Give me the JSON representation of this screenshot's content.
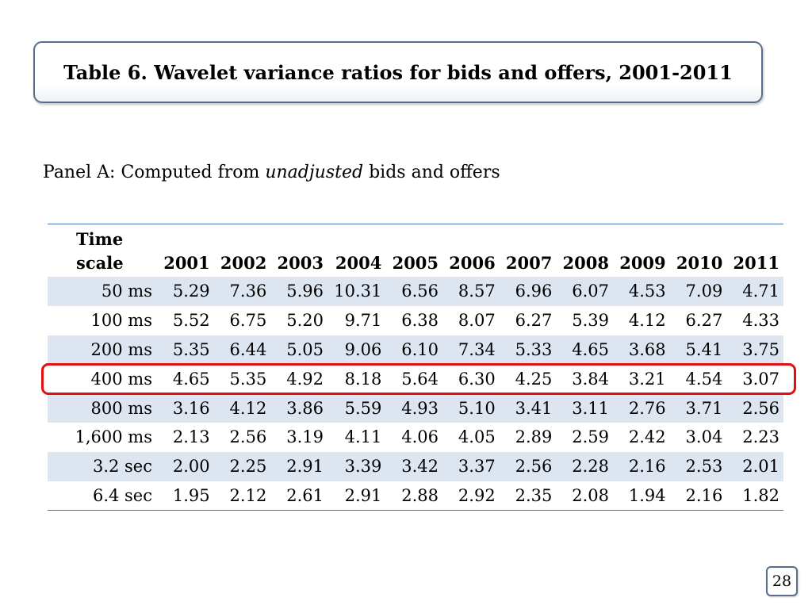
{
  "title": "Table 6. Wavelet variance ratios for bids and offers, 2001-2011",
  "panel": {
    "prefix": "Panel A: Computed from ",
    "emphasis": "unadjusted",
    "suffix": " bids and offers"
  },
  "table": {
    "scale_header_line1": "Time",
    "scale_header_line2": "scale",
    "years": [
      "2001",
      "2002",
      "2003",
      "2004",
      "2005",
      "2006",
      "2007",
      "2008",
      "2009",
      "2010",
      "2011"
    ],
    "rows": [
      {
        "scale": "50 ms",
        "values": [
          "5.29",
          "7.36",
          "5.96",
          "10.31",
          "6.56",
          "8.57",
          "6.96",
          "6.07",
          "4.53",
          "7.09",
          "4.71"
        ]
      },
      {
        "scale": "100 ms",
        "values": [
          "5.52",
          "6.75",
          "5.20",
          "9.71",
          "6.38",
          "8.07",
          "6.27",
          "5.39",
          "4.12",
          "6.27",
          "4.33"
        ]
      },
      {
        "scale": "200 ms",
        "values": [
          "5.35",
          "6.44",
          "5.05",
          "9.06",
          "6.10",
          "7.34",
          "5.33",
          "4.65",
          "3.68",
          "5.41",
          "3.75"
        ]
      },
      {
        "scale": "400 ms",
        "values": [
          "4.65",
          "5.35",
          "4.92",
          "8.18",
          "5.64",
          "6.30",
          "4.25",
          "3.84",
          "3.21",
          "4.54",
          "3.07"
        ]
      },
      {
        "scale": "800 ms",
        "values": [
          "3.16",
          "4.12",
          "3.86",
          "5.59",
          "4.93",
          "5.10",
          "3.41",
          "3.11",
          "2.76",
          "3.71",
          "2.56"
        ]
      },
      {
        "scale": "1,600 ms",
        "values": [
          "2.13",
          "2.56",
          "3.19",
          "4.11",
          "4.06",
          "4.05",
          "2.89",
          "2.59",
          "2.42",
          "3.04",
          "2.23"
        ]
      },
      {
        "scale": "3.2 sec",
        "values": [
          "2.00",
          "2.25",
          "2.91",
          "3.39",
          "3.42",
          "3.37",
          "2.56",
          "2.28",
          "2.16",
          "2.53",
          "2.01"
        ]
      },
      {
        "scale": "6.4 sec",
        "values": [
          "1.95",
          "2.12",
          "2.61",
          "2.91",
          "2.88",
          "2.92",
          "2.35",
          "2.08",
          "1.94",
          "2.16",
          "1.82"
        ]
      }
    ]
  },
  "highlight_color": "#e01010",
  "page_number": "28"
}
